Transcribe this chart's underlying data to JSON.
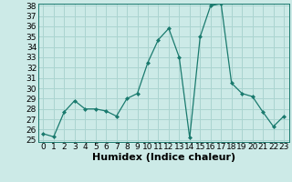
{
  "x": [
    0,
    1,
    2,
    3,
    4,
    5,
    6,
    7,
    8,
    9,
    10,
    11,
    12,
    13,
    14,
    15,
    16,
    17,
    18,
    19,
    20,
    21,
    22,
    23
  ],
  "y": [
    25.6,
    25.3,
    27.7,
    28.8,
    28.0,
    28.0,
    27.8,
    27.3,
    29.0,
    29.5,
    32.5,
    34.7,
    35.8,
    33.0,
    25.2,
    35.0,
    38.0,
    38.2,
    30.5,
    29.5,
    29.2,
    27.7,
    26.3,
    27.3
  ],
  "line_color": "#1a7a6e",
  "marker": "D",
  "marker_size": 2.0,
  "bg_color": "#cceae7",
  "grid_color": "#aad4d0",
  "xlabel": "Humidex (Indice chaleur)",
  "ylim": [
    25,
    38
  ],
  "xlim": [
    -0.5,
    23.5
  ],
  "yticks": [
    25,
    26,
    27,
    28,
    29,
    30,
    31,
    32,
    33,
    34,
    35,
    36,
    37,
    38
  ],
  "xticks": [
    0,
    1,
    2,
    3,
    4,
    5,
    6,
    7,
    8,
    9,
    10,
    11,
    12,
    13,
    14,
    15,
    16,
    17,
    18,
    19,
    20,
    21,
    22,
    23
  ],
  "tick_fontsize": 6.5,
  "xlabel_fontsize": 8.0
}
